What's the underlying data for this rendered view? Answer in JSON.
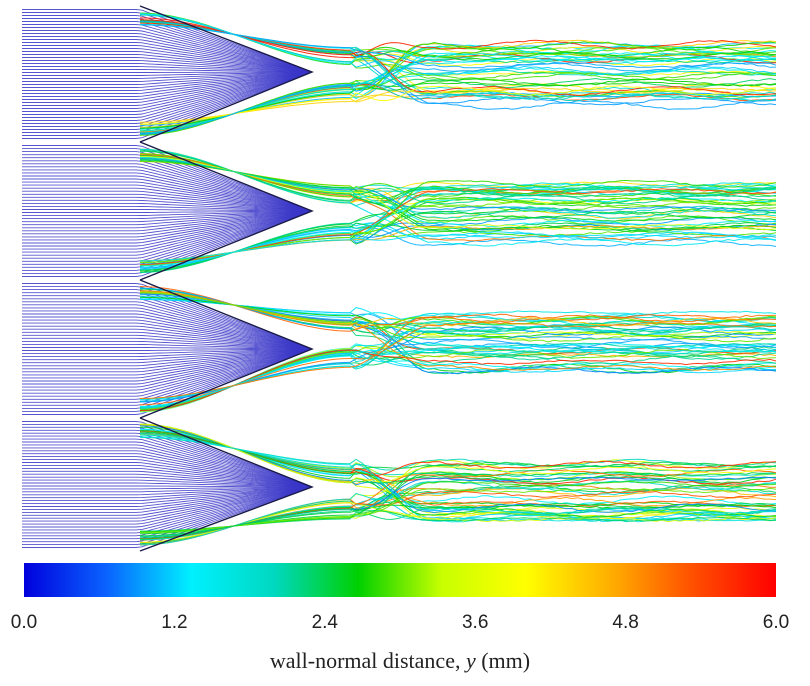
{
  "chart_data": {
    "type": "streamline-field",
    "colorbar": {
      "xlabel_prefix": "wall-normal distance, ",
      "xlabel_symbol": "y",
      "xlabel_unit": " (mm)",
      "range": [
        0.0,
        6.0
      ],
      "ticks": [
        "0.0",
        "1.2",
        "2.4",
        "3.6",
        "4.8",
        "6.0"
      ],
      "tick_values": [
        0.0,
        1.2,
        2.4,
        3.6,
        4.8,
        6.0
      ],
      "colormap": [
        "#0000dd",
        "#0a64ff",
        "#00f0ff",
        "#00d8c0",
        "#00d000",
        "#c8ff00",
        "#ffff00",
        "#ffb000",
        "#ff5000",
        "#ff0000"
      ]
    },
    "streamlines": {
      "groups": 4,
      "upstream_color": "#3a36c8",
      "downstream_value_range": [
        0.8,
        5.8
      ]
    }
  }
}
